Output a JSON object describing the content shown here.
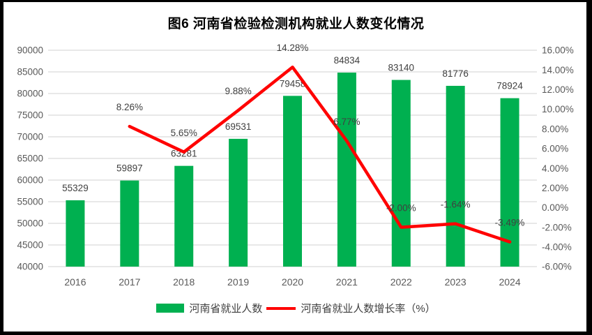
{
  "title": "图6  河南省检验检测机构就业人数变化情况",
  "legend": {
    "bar_label": "河南省就业人数",
    "line_label": "河南省就业人数增长率（%）"
  },
  "chart_data": {
    "type": "combo-bar-line",
    "title": "图6  河南省检验检测机构就业人数变化情况",
    "categories": [
      "2016",
      "2017",
      "2018",
      "2019",
      "2020",
      "2021",
      "2022",
      "2023",
      "2024"
    ],
    "series": [
      {
        "name": "河南省就业人数",
        "type": "bar",
        "axis": "left",
        "values": [
          55329,
          59897,
          63281,
          69531,
          79458,
          84834,
          83140,
          81776,
          78924
        ],
        "labels": [
          "55329",
          "59897",
          "63281",
          "69531",
          "79458",
          "84834",
          "83140",
          "81776",
          "78924"
        ]
      },
      {
        "name": "河南省就业人数增长率（%）",
        "type": "line",
        "axis": "right",
        "values": [
          null,
          8.26,
          5.65,
          9.88,
          14.28,
          6.77,
          -2.0,
          -1.64,
          -3.49
        ],
        "labels": [
          null,
          "8.26%",
          "5.65%",
          "9.88%",
          "14.28%",
          "6.77%",
          "-2.00%",
          "-1.64%",
          "-3.49%"
        ]
      }
    ],
    "left_axis": {
      "min": 40000,
      "max": 90000,
      "step": 5000,
      "tick_labels": [
        "90000",
        "85000",
        "80000",
        "75000",
        "70000",
        "65000",
        "60000",
        "55000",
        "50000",
        "45000",
        "40000"
      ]
    },
    "right_axis": {
      "min": -6,
      "max": 16,
      "step": 2,
      "tick_labels": [
        "16.00%",
        "14.00%",
        "12.00%",
        "10.00%",
        "8.00%",
        "6.00%",
        "4.00%",
        "2.00%",
        "0.00%",
        "-2.00%",
        "-4.00%",
        "-6.00%"
      ]
    },
    "grid": true,
    "legend_position": "bottom"
  },
  "colors": {
    "bar": "#00B050",
    "line": "#FF0000",
    "grid": "#D9D9D9",
    "axis_text": "#595959",
    "label_text": "#404040",
    "title_text": "#000000",
    "frame": "#000000",
    "background": "#FFFFFF"
  }
}
